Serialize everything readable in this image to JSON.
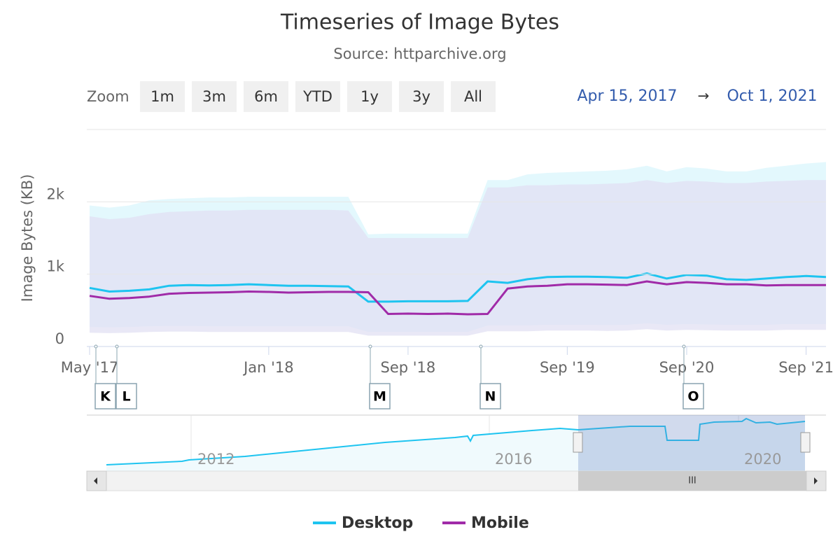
{
  "chart_data": {
    "type": "line",
    "title": "Timeseries of Image Bytes",
    "subtitle": "Source: httparchive.org",
    "zoom": {
      "label": "Zoom",
      "buttons": [
        "1m",
        "3m",
        "6m",
        "YTD",
        "1y",
        "3y",
        "All"
      ]
    },
    "range": {
      "from": "Apr 15, 2017",
      "arrow": "→",
      "to": "Oct 1, 2021"
    },
    "y_label": "Image Bytes (KB)",
    "ylim": [
      0,
      3000
    ],
    "yticks": [
      {
        "value": 0,
        "label": "0"
      },
      {
        "value": 1000,
        "label": "1k"
      },
      {
        "value": 2000,
        "label": "2k"
      }
    ],
    "grid": true,
    "categories": [
      "May '17",
      null,
      null,
      null,
      null,
      null,
      null,
      null,
      null,
      "Jan '18",
      null,
      null,
      null,
      null,
      null,
      null,
      "Sep '18",
      null,
      null,
      null,
      null,
      null,
      null,
      null,
      "Sep '19",
      null,
      null,
      null,
      null,
      null,
      "Sep '20",
      null,
      null,
      null,
      null,
      null,
      "Sep '21",
      null
    ],
    "flags": [
      "K",
      "L",
      "M",
      "N",
      "O"
    ],
    "navigator": {
      "labels": [
        "2012",
        "2016",
        "2020"
      ],
      "scroll_thumb": "III"
    },
    "series": [
      {
        "name": "Desktop",
        "color": "#1ec4f0",
        "band_color": "#d9f5fc",
        "values": [
          810,
          760,
          770,
          790,
          840,
          850,
          845,
          850,
          860,
          850,
          840,
          840,
          835,
          830,
          620,
          620,
          625,
          625,
          625,
          630,
          900,
          880,
          930,
          960,
          965,
          965,
          960,
          950,
          1010,
          940,
          990,
          980,
          930,
          920,
          940,
          960,
          975,
          960
        ],
        "low": [
          270,
          265,
          270,
          280,
          285,
          285,
          280,
          280,
          280,
          280,
          280,
          280,
          280,
          280,
          200,
          200,
          200,
          200,
          200,
          200,
          290,
          290,
          290,
          300,
          300,
          300,
          295,
          300,
          320,
          300,
          310,
          305,
          300,
          300,
          300,
          310,
          310,
          310
        ],
        "high": [
          1950,
          1920,
          1950,
          2020,
          2040,
          2050,
          2060,
          2060,
          2070,
          2070,
          2070,
          2070,
          2070,
          2070,
          1550,
          1560,
          1560,
          1560,
          1560,
          1560,
          2300,
          2300,
          2380,
          2400,
          2410,
          2420,
          2430,
          2450,
          2500,
          2420,
          2480,
          2460,
          2420,
          2420,
          2470,
          2500,
          2530,
          2550
        ]
      },
      {
        "name": "Mobile",
        "color": "#a02ba8",
        "band_color": "#e2e0f3",
        "values": [
          700,
          660,
          670,
          690,
          730,
          740,
          745,
          750,
          760,
          755,
          745,
          750,
          755,
          755,
          750,
          450,
          455,
          450,
          455,
          445,
          450,
          800,
          830,
          840,
          860,
          860,
          855,
          850,
          900,
          860,
          890,
          880,
          860,
          860,
          845,
          850,
          850,
          850
        ],
        "low": [
          190,
          185,
          190,
          200,
          205,
          205,
          200,
          200,
          200,
          200,
          200,
          200,
          200,
          200,
          150,
          150,
          150,
          150,
          150,
          150,
          210,
          210,
          210,
          220,
          220,
          220,
          215,
          220,
          240,
          220,
          230,
          225,
          220,
          220,
          220,
          230,
          230,
          230
        ],
        "high": [
          1800,
          1760,
          1780,
          1830,
          1860,
          1870,
          1880,
          1880,
          1890,
          1890,
          1890,
          1890,
          1890,
          1880,
          1500,
          1500,
          1500,
          1500,
          1500,
          1500,
          2200,
          2200,
          2230,
          2230,
          2240,
          2240,
          2250,
          2260,
          2300,
          2260,
          2290,
          2280,
          2260,
          2260,
          2280,
          2290,
          2300,
          2300
        ]
      }
    ]
  }
}
